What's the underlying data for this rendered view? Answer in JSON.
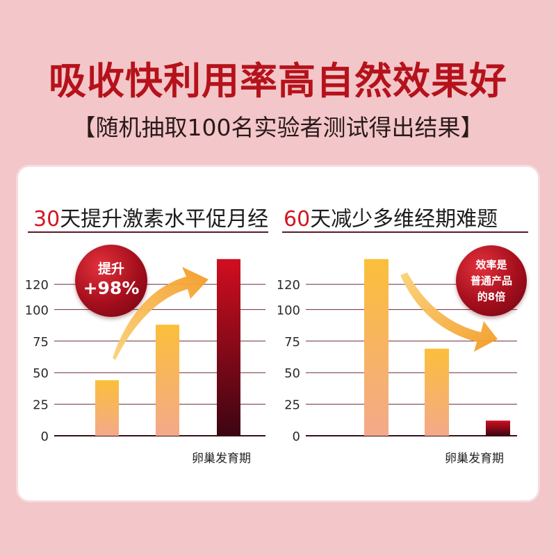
{
  "header": {
    "title": "吸收快利用率高自然效果好",
    "subtitle": "【随机抽取100名实验者测试得出结果】"
  },
  "colors": {
    "accent": "#b5121b",
    "bar_light_top": "#fbbf3a",
    "bar_light_bottom": "#f4a98a",
    "bar_dark_top": "#d10e20",
    "bar_dark_bottom": "#3c0512",
    "arrow": "#f7a32c"
  },
  "left_panel": {
    "title_number": "30",
    "title_text": "天提升激素水平促月经",
    "badge_line1": "提升",
    "badge_line2": "+98%"
  },
  "right_panel": {
    "title_number": "60",
    "title_text": "天减少多维经期难题",
    "badge_line1": "效率是",
    "badge_line2": "普通产品",
    "badge_line3": "的8倍"
  },
  "chart_data": [
    {
      "type": "bar",
      "title": "30天提升激素水平促月经",
      "xlabel": "卵巢发育期",
      "ylabel": "",
      "ylim": [
        0,
        140
      ],
      "yticks": [
        0,
        25,
        50,
        75,
        100,
        120
      ],
      "grid": true,
      "categories": [
        "",
        "",
        ""
      ],
      "values": [
        44,
        88,
        140
      ],
      "annotation": "提升 +98%",
      "trend_arrow": "up"
    },
    {
      "type": "bar",
      "title": "60天减少多维经期难题",
      "xlabel": "卵巢发育期",
      "ylabel": "",
      "ylim": [
        0,
        140
      ],
      "yticks": [
        0,
        25,
        50,
        75,
        100,
        120
      ],
      "grid": true,
      "categories": [
        "",
        "",
        ""
      ],
      "values": [
        140,
        69,
        12
      ],
      "annotation": "效率是 普通产品 的8倍",
      "trend_arrow": "down"
    }
  ]
}
